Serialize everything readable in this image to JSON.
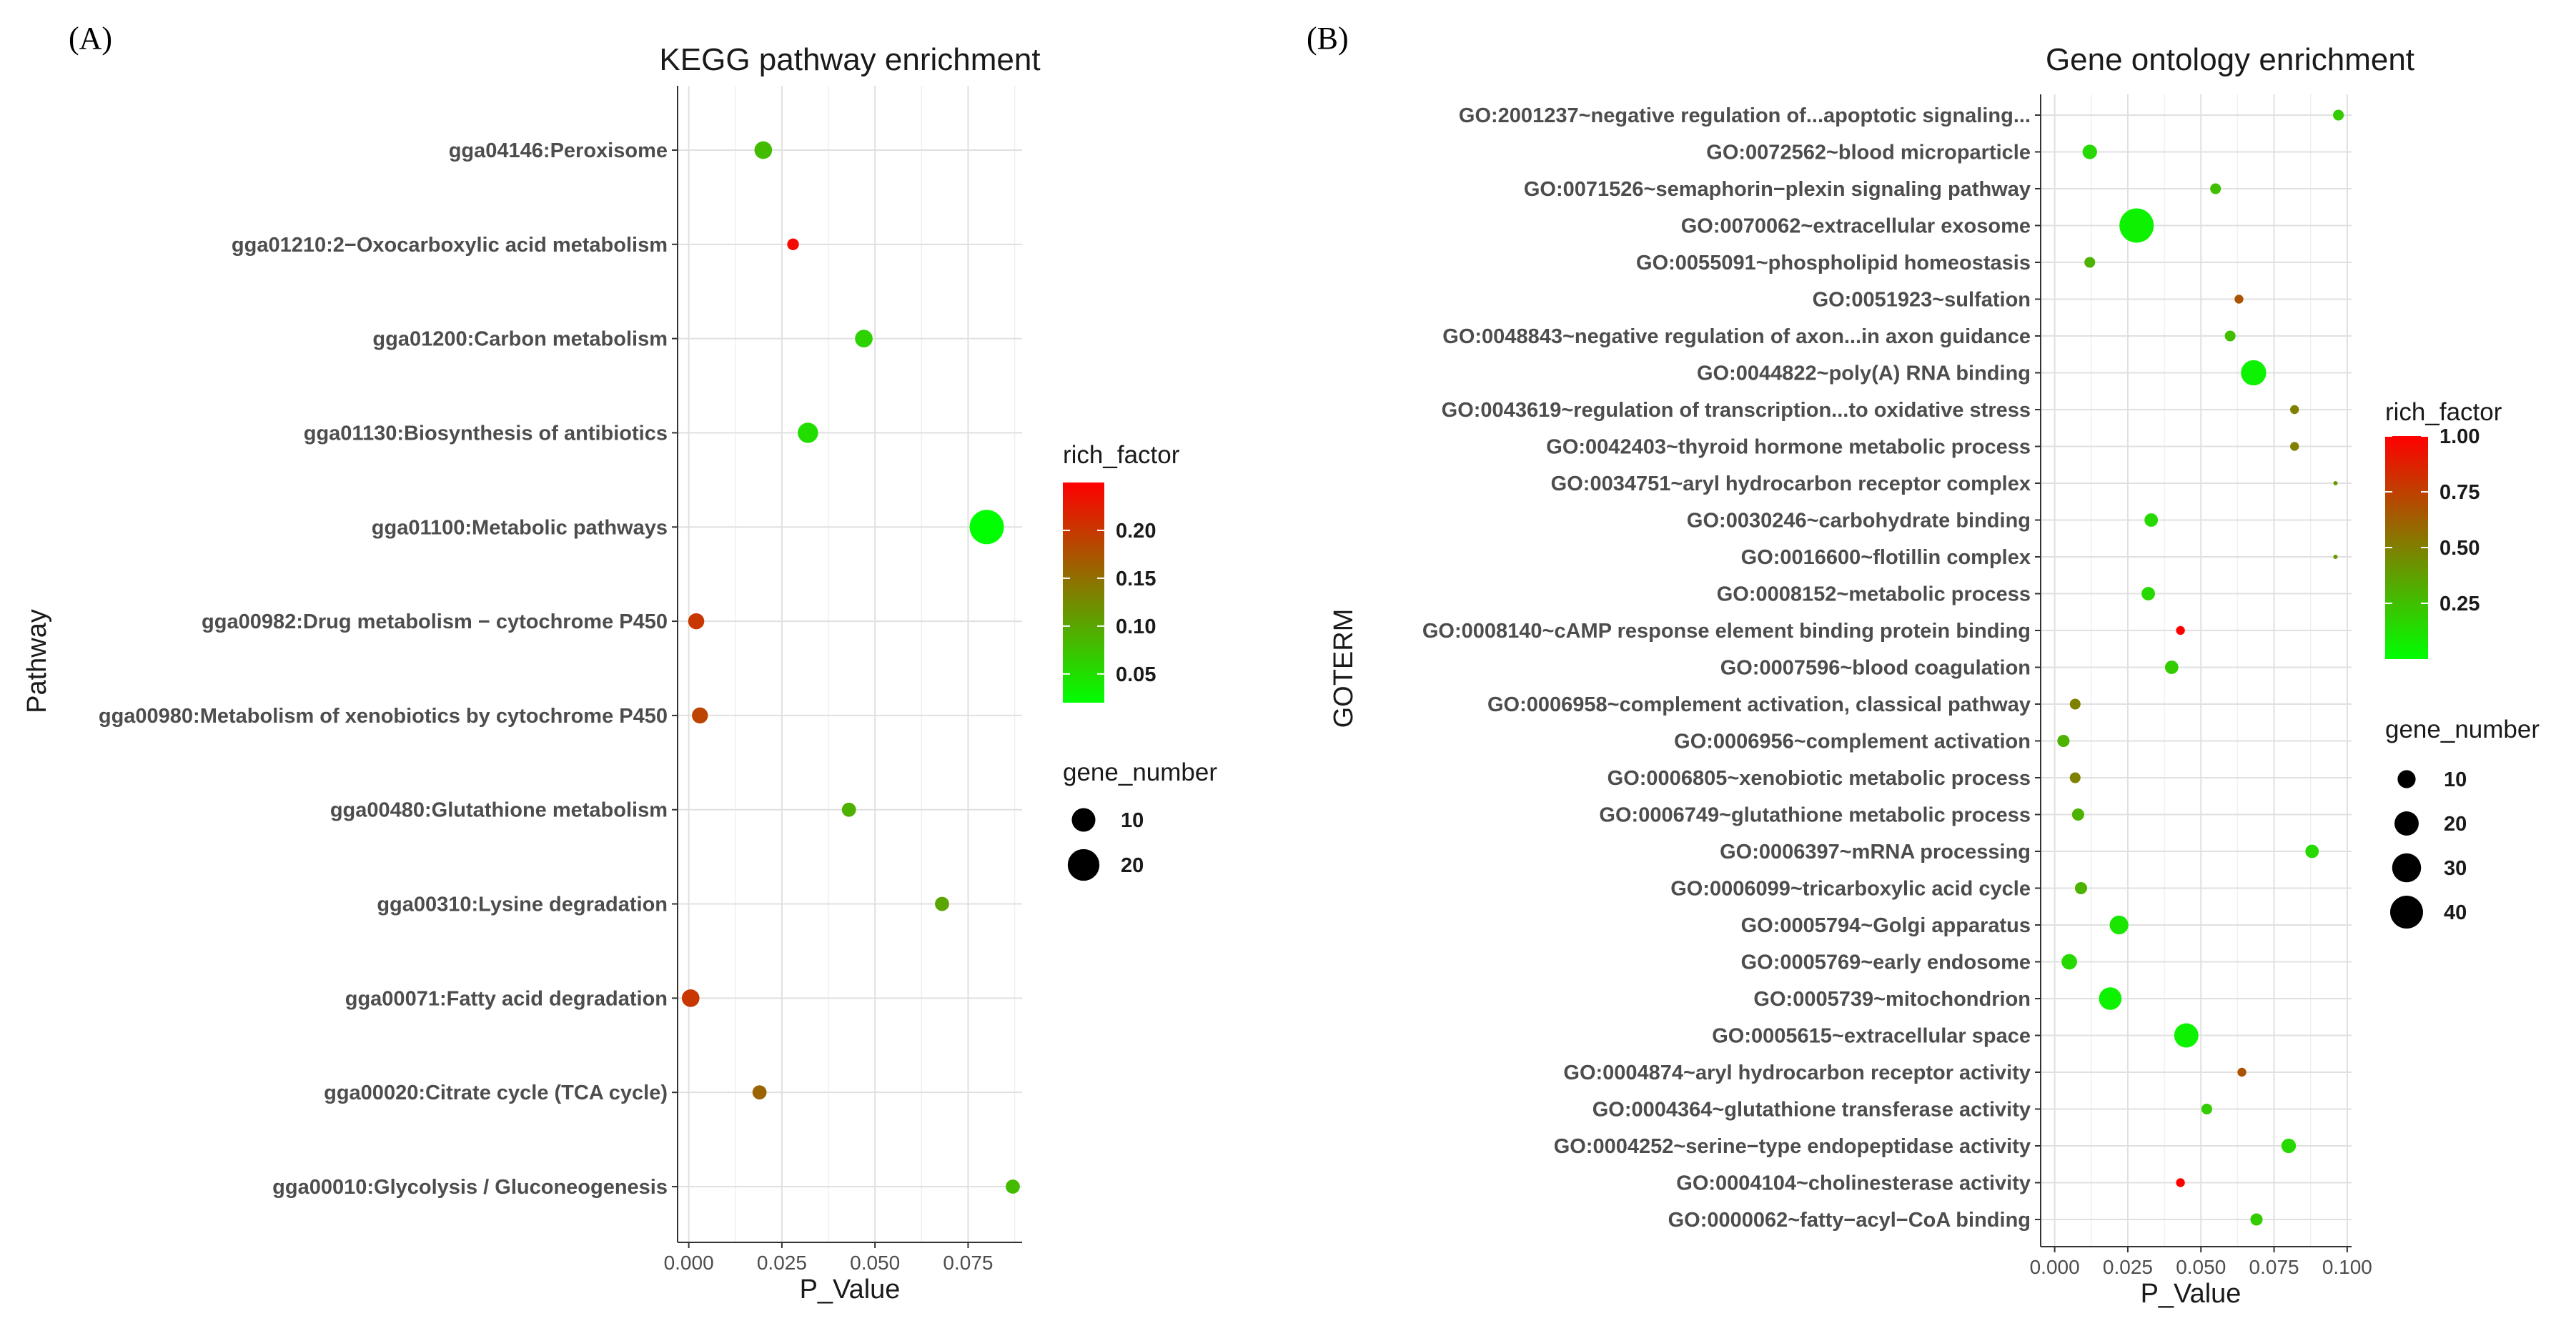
{
  "panels": [
    {
      "letter": "(A)",
      "chart_data": {
        "type": "scatter",
        "title": "KEGG pathway enrichment",
        "xlabel": "P_Value",
        "ylabel": "Pathway",
        "xlim": [
          -0.003,
          0.0895
        ],
        "xticks": [
          0.0,
          0.025,
          0.05,
          0.075
        ],
        "xtick_labels": [
          "0.000",
          "0.025",
          "0.050",
          "0.075"
        ],
        "grid": true,
        "color_scale": {
          "name": "rich_factor",
          "low_color": "#00ff00",
          "high_color": "#ff0000",
          "range": [
            0.02,
            0.25
          ],
          "ticks": [
            0.05,
            0.1,
            0.15,
            0.2
          ],
          "tick_labels": [
            "0.05",
            "0.10",
            "0.15",
            "0.20"
          ]
        },
        "size_scale": {
          "name": "gene_number",
          "range": [
            1,
            24
          ],
          "legend_values": [
            10,
            20
          ],
          "legend_labels": [
            "10",
            "20"
          ]
        },
        "points": [
          {
            "term": "gga04146:Peroxisome",
            "p_value": 0.02,
            "rich_factor": 0.08,
            "gene_number": 5
          },
          {
            "term": "gga01210:2−Oxocarboxylic acid metabolism",
            "p_value": 0.028,
            "rich_factor": 0.24,
            "gene_number": 2
          },
          {
            "term": "gga01200:Carbon metabolism",
            "p_value": 0.047,
            "rich_factor": 0.06,
            "gene_number": 5
          },
          {
            "term": "gga01130:Biosynthesis of antibiotics",
            "p_value": 0.032,
            "rich_factor": 0.05,
            "gene_number": 7
          },
          {
            "term": "gga01100:Metabolic pathways",
            "p_value": 0.08,
            "rich_factor": 0.02,
            "gene_number": 24
          },
          {
            "term": "gga00982:Drug metabolism − cytochrome P450",
            "p_value": 0.002,
            "rich_factor": 0.2,
            "gene_number": 4
          },
          {
            "term": "gga00980:Metabolism of xenobiotics by cytochrome P450",
            "p_value": 0.003,
            "rich_factor": 0.19,
            "gene_number": 4
          },
          {
            "term": "gga00480:Glutathione metabolism",
            "p_value": 0.043,
            "rich_factor": 0.09,
            "gene_number": 3
          },
          {
            "term": "gga00310:Lysine degradation",
            "p_value": 0.068,
            "rich_factor": 0.1,
            "gene_number": 3
          },
          {
            "term": "gga00071:Fatty acid degradation",
            "p_value": 0.0005,
            "rich_factor": 0.2,
            "gene_number": 5
          },
          {
            "term": "gga00020:Citrate cycle (TCA cycle)",
            "p_value": 0.019,
            "rich_factor": 0.16,
            "gene_number": 3
          },
          {
            "term": "gga00010:Glycolysis / Gluconeogenesis",
            "p_value": 0.087,
            "rich_factor": 0.08,
            "gene_number": 3
          }
        ]
      }
    },
    {
      "letter": "(B)",
      "chart_data": {
        "type": "scatter",
        "title": "Gene ontology enrichment",
        "xlabel": "P_Value",
        "ylabel": "GOTERM",
        "xlim": [
          -0.0048,
          0.1015
        ],
        "xticks": [
          0.0,
          0.025,
          0.05,
          0.075,
          0.1
        ],
        "xtick_labels": [
          "0.000",
          "0.025",
          "0.050",
          "0.075",
          "0.100"
        ],
        "grid": true,
        "color_scale": {
          "name": "rich_factor",
          "low_color": "#00ff00",
          "high_color": "#ff0000",
          "range": [
            0.0,
            1.0
          ],
          "ticks": [
            0.25,
            0.5,
            0.75,
            1.0
          ],
          "tick_labels": [
            "0.25",
            "0.50",
            "0.75",
            "1.00"
          ]
        },
        "size_scale": {
          "name": "gene_number",
          "range": [
            1,
            44
          ],
          "legend_values": [
            10,
            20,
            30,
            40
          ],
          "legend_labels": [
            "10",
            "20",
            "30",
            "40"
          ]
        },
        "points": [
          {
            "term": "GO:2001237~negative regulation of...apoptotic signaling...",
            "p_value": 0.097,
            "rich_factor": 0.2,
            "gene_number": 3
          },
          {
            "term": "GO:0072562~blood microparticle",
            "p_value": 0.012,
            "rich_factor": 0.15,
            "gene_number": 6
          },
          {
            "term": "GO:0071526~semaphorin−plexin signaling pathway",
            "p_value": 0.055,
            "rich_factor": 0.25,
            "gene_number": 3
          },
          {
            "term": "GO:0070062~extracellular exosome",
            "p_value": 0.028,
            "rich_factor": 0.05,
            "gene_number": 44
          },
          {
            "term": "GO:0055091~phospholipid homeostasis",
            "p_value": 0.012,
            "rich_factor": 0.3,
            "gene_number": 3
          },
          {
            "term": "GO:0051923~sulfation",
            "p_value": 0.063,
            "rich_factor": 0.67,
            "gene_number": 2
          },
          {
            "term": "GO:0048843~negative regulation of axon...in axon guidance",
            "p_value": 0.06,
            "rich_factor": 0.25,
            "gene_number": 3
          },
          {
            "term": "GO:0044822~poly(A) RNA binding",
            "p_value": 0.068,
            "rich_factor": 0.05,
            "gene_number": 22
          },
          {
            "term": "GO:0043619~regulation of transcription...to oxidative stress",
            "p_value": 0.082,
            "rich_factor": 0.5,
            "gene_number": 2
          },
          {
            "term": "GO:0042403~thyroid hormone metabolic process",
            "p_value": 0.082,
            "rich_factor": 0.5,
            "gene_number": 2
          },
          {
            "term": "GO:0034751~aryl hydrocarbon receptor complex",
            "p_value": 0.096,
            "rich_factor": 0.4,
            "gene_number": 1
          },
          {
            "term": "GO:0030246~carbohydrate binding",
            "p_value": 0.033,
            "rich_factor": 0.15,
            "gene_number": 5
          },
          {
            "term": "GO:0016600~flotillin complex",
            "p_value": 0.096,
            "rich_factor": 0.4,
            "gene_number": 1
          },
          {
            "term": "GO:0008152~metabolic process",
            "p_value": 0.032,
            "rich_factor": 0.15,
            "gene_number": 5
          },
          {
            "term": "GO:0008140~cAMP response element binding protein binding",
            "p_value": 0.043,
            "rich_factor": 1.0,
            "gene_number": 2
          },
          {
            "term": "GO:0007596~blood coagulation",
            "p_value": 0.04,
            "rich_factor": 0.2,
            "gene_number": 5
          },
          {
            "term": "GO:0006958~complement activation, classical pathway",
            "p_value": 0.007,
            "rich_factor": 0.5,
            "gene_number": 3
          },
          {
            "term": "GO:0006956~complement activation",
            "p_value": 0.003,
            "rich_factor": 0.3,
            "gene_number": 4
          },
          {
            "term": "GO:0006805~xenobiotic metabolic process",
            "p_value": 0.007,
            "rich_factor": 0.5,
            "gene_number": 3
          },
          {
            "term": "GO:0006749~glutathione metabolic process",
            "p_value": 0.008,
            "rich_factor": 0.3,
            "gene_number": 4
          },
          {
            "term": "GO:0006397~mRNA processing",
            "p_value": 0.088,
            "rich_factor": 0.15,
            "gene_number": 5
          },
          {
            "term": "GO:0006099~tricarboxylic acid cycle",
            "p_value": 0.009,
            "rich_factor": 0.3,
            "gene_number": 4
          },
          {
            "term": "GO:0005794~Golgi apparatus",
            "p_value": 0.022,
            "rich_factor": 0.1,
            "gene_number": 11
          },
          {
            "term": "GO:0005769~early endosome",
            "p_value": 0.005,
            "rich_factor": 0.15,
            "gene_number": 7
          },
          {
            "term": "GO:0005739~mitochondrion",
            "p_value": 0.019,
            "rich_factor": 0.05,
            "gene_number": 17
          },
          {
            "term": "GO:0005615~extracellular space",
            "p_value": 0.045,
            "rich_factor": 0.05,
            "gene_number": 20
          },
          {
            "term": "GO:0004874~aryl hydrocarbon receptor activity",
            "p_value": 0.064,
            "rich_factor": 0.67,
            "gene_number": 2
          },
          {
            "term": "GO:0004364~glutathione transferase activity",
            "p_value": 0.052,
            "rich_factor": 0.2,
            "gene_number": 3
          },
          {
            "term": "GO:0004252~serine−type endopeptidase activity",
            "p_value": 0.08,
            "rich_factor": 0.15,
            "gene_number": 6
          },
          {
            "term": "GO:0004104~cholinesterase activity",
            "p_value": 0.043,
            "rich_factor": 1.0,
            "gene_number": 2
          },
          {
            "term": "GO:0000062~fatty−acyl−CoA binding",
            "p_value": 0.069,
            "rich_factor": 0.2,
            "gene_number": 4
          }
        ]
      }
    }
  ]
}
